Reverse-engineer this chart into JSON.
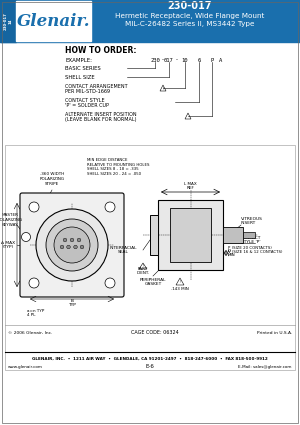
{
  "title_part": "230-017",
  "title_line1": "Hermetic Receptacle, Wide Flange Mount",
  "title_line2": "MIL-C-26482 Series II, MS3442 Type",
  "header_bg": "#1a6fad",
  "header_text_color": "#ffffff",
  "body_bg": "#ffffff",
  "footer_text": "GLENAIR, INC.  •  1211 AIR WAY  •  GLENDALE, CA 91201-2497  •  818-247-6000  •  FAX 818-500-9912",
  "footer_web": "www.glenair.com",
  "footer_page": "E-6",
  "footer_email": "E-Mail: sales@glenair.com"
}
